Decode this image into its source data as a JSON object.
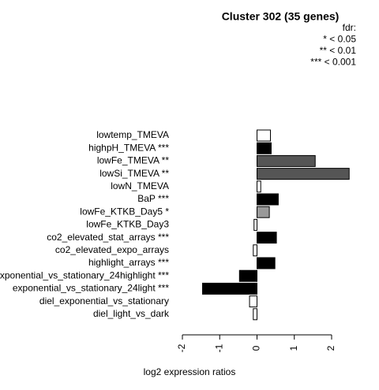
{
  "chart_data": {
    "type": "barh",
    "title": "Cluster 302 (35 genes)",
    "legend_lines": [
      "fdr:",
      "* < 0.05",
      "** < 0.01",
      "*** < 0.001"
    ],
    "xlabel": "log2 expression ratios",
    "categories": [
      "lowtemp_TMEVA",
      "highpH_TMEVA ***",
      "lowFe_TMEVA **",
      "lowSi_TMEVA **",
      "lowN_TMEVA",
      "BaP ***",
      "lowFe_KTKB_Day5 *",
      "lowFe_KTKB_Day3",
      "co2_elevated_stat_arrays ***",
      "co2_elevated_expo_arrays",
      "highlight_arrays ***",
      "exponential_vs_stationary_24highlight ***",
      "exponential_vs_stationary_24light ***",
      "diel_exponential_vs_stationary",
      "diel_light_vs_dark"
    ],
    "values": [
      0.36,
      0.38,
      1.56,
      2.47,
      0.1,
      0.57,
      0.33,
      -0.08,
      0.52,
      -0.1,
      0.48,
      -0.47,
      -1.46,
      -0.2,
      -0.1
    ],
    "colors": [
      "#ffffff",
      "#000000",
      "#555555",
      "#555555",
      "#ffffff",
      "#000000",
      "#999999",
      "#ffffff",
      "#000000",
      "#ffffff",
      "#000000",
      "#000000",
      "#000000",
      "#ffffff",
      "#ffffff"
    ],
    "xlim": [
      -2,
      2
    ],
    "xticks": [
      -2,
      -1,
      0,
      1,
      2
    ]
  }
}
